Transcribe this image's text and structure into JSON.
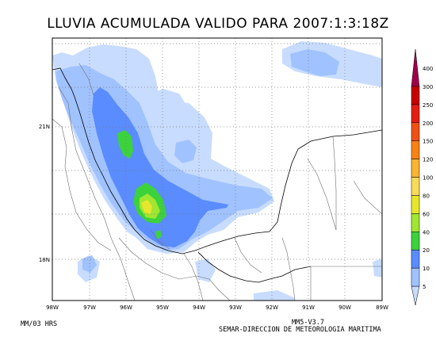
{
  "title": "LLUVIA ACUMULADA VALIDO PARA 2007:1:3:18Z",
  "axes": {
    "longitude_labels": [
      "98W",
      "97W",
      "96W",
      "95W",
      "94W",
      "93W",
      "92W",
      "91W",
      "90W",
      "89W"
    ],
    "latitude_labels": [
      "21N",
      "18N"
    ]
  },
  "colorbar": {
    "levels": [
      "5",
      "10",
      "20",
      "40",
      "60",
      "80",
      "100",
      "120",
      "150",
      "200",
      "250",
      "300",
      "400"
    ],
    "colors": [
      "#c8dcff",
      "#a0c2ff",
      "#5a8cff",
      "#3cd23c",
      "#a0e632",
      "#e6e62e",
      "#fada5a",
      "#f8b432",
      "#fa8214",
      "#f05016",
      "#e41e12",
      "#c80000",
      "#a0004a"
    ]
  },
  "footer": {
    "left": "MM/03 HRS",
    "right_line1": "MM5-V3.7",
    "right_line2": "SEMAR-DIRECCION DE METEOROLOGIA MARITIMA"
  }
}
